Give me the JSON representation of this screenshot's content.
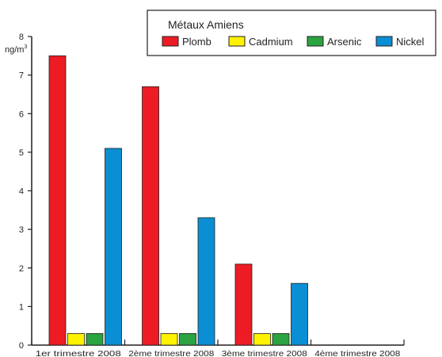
{
  "chart_data": {
    "type": "bar",
    "title": "Métaux Amiens",
    "ylabel_main": "ng/m",
    "ylabel_sup": "3",
    "categories": [
      "1er trimestre 2008",
      "2ème trimestre 2008",
      "3ème trimestre 2008",
      "4ème trimestre 2008"
    ],
    "series": [
      {
        "name": "Plomb",
        "color": "#ed1c24",
        "values": [
          7.5,
          6.7,
          2.1,
          0
        ]
      },
      {
        "name": "Cadmium",
        "color": "#fff200",
        "values": [
          0.3,
          0.3,
          0.3,
          0
        ]
      },
      {
        "name": "Arsenic",
        "color": "#2ba340",
        "values": [
          0.3,
          0.3,
          0.3,
          0
        ]
      },
      {
        "name": "Nickel",
        "color": "#0a8ed4",
        "values": [
          5.1,
          3.3,
          1.6,
          0
        ]
      }
    ],
    "ylim": [
      0,
      8
    ],
    "yticks": [
      "0",
      "1",
      "2",
      "3",
      "4",
      "5",
      "6",
      "7",
      "8"
    ],
    "grid": false,
    "legend_position": "top-right"
  }
}
